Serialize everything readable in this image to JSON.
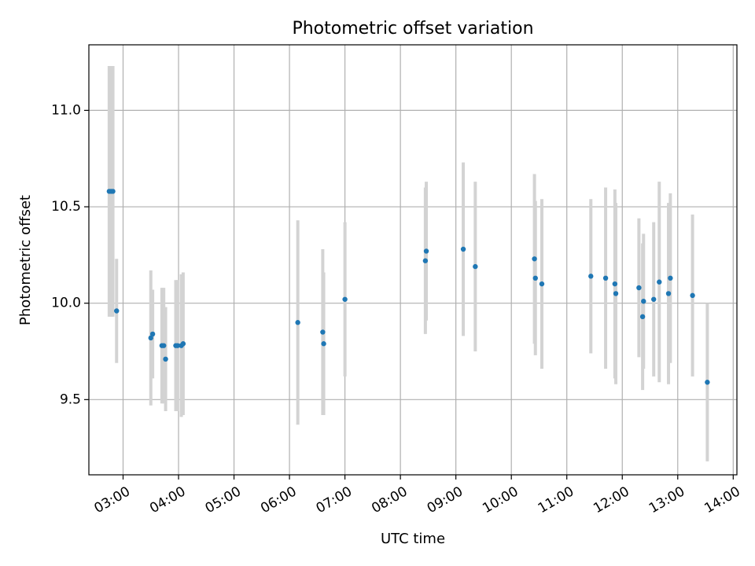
{
  "chart_data": {
    "type": "scatter",
    "title": "Photometric offset variation",
    "xlabel": "UTC time",
    "ylabel": "Photometric offset",
    "grid": true,
    "x_ticks": [
      "03:00",
      "04:00",
      "05:00",
      "06:00",
      "07:00",
      "08:00",
      "09:00",
      "10:00",
      "11:00",
      "12:00",
      "13:00",
      "14:00"
    ],
    "y_ticks": [
      "9.5",
      "10.0",
      "10.5",
      "11.0"
    ],
    "xlim": [
      "02:23",
      "14:04"
    ],
    "ylim": [
      9.11,
      11.34
    ],
    "colors": {
      "point": "#1f77b4",
      "errorbar": "#d3d3d3"
    },
    "series": [
      {
        "points": [
          {
            "x": "02:45",
            "y": 10.58,
            "err": 0.65
          },
          {
            "x": "02:47",
            "y": 10.58,
            "err": 0.65
          },
          {
            "x": "02:49",
            "y": 10.58,
            "err": 0.65
          },
          {
            "x": "02:53",
            "y": 9.96,
            "err": 0.27
          },
          {
            "x": "03:30",
            "y": 9.82,
            "err": 0.35
          },
          {
            "x": "03:32",
            "y": 9.84,
            "err": 0.23
          },
          {
            "x": "03:42",
            "y": 9.78,
            "err": 0.3
          },
          {
            "x": "03:44",
            "y": 9.78,
            "err": 0.3
          },
          {
            "x": "03:46",
            "y": 9.71,
            "err": 0.27
          },
          {
            "x": "03:57",
            "y": 9.78,
            "err": 0.34
          },
          {
            "x": "03:59",
            "y": 9.78,
            "err": 0.34
          },
          {
            "x": "04:03",
            "y": 9.78,
            "err": 0.37
          },
          {
            "x": "04:05",
            "y": 9.79,
            "err": 0.37
          },
          {
            "x": "06:09",
            "y": 9.9,
            "err": 0.53
          },
          {
            "x": "06:36",
            "y": 9.85,
            "err": 0.43
          },
          {
            "x": "06:37",
            "y": 9.79,
            "err": 0.37
          },
          {
            "x": "07:00",
            "y": 10.02,
            "err": 0.4
          },
          {
            "x": "08:27",
            "y": 10.22,
            "err": 0.38
          },
          {
            "x": "08:28",
            "y": 10.27,
            "err": 0.36
          },
          {
            "x": "09:08",
            "y": 10.28,
            "err": 0.45
          },
          {
            "x": "09:21",
            "y": 10.19,
            "err": 0.44
          },
          {
            "x": "10:25",
            "y": 10.23,
            "err": 0.44
          },
          {
            "x": "10:26",
            "y": 10.13,
            "err": 0.4
          },
          {
            "x": "10:33",
            "y": 10.1,
            "err": 0.44
          },
          {
            "x": "11:26",
            "y": 10.14,
            "err": 0.4
          },
          {
            "x": "11:42",
            "y": 10.13,
            "err": 0.47
          },
          {
            "x": "11:52",
            "y": 10.1,
            "err": 0.49
          },
          {
            "x": "11:53",
            "y": 10.05,
            "err": 0.47
          },
          {
            "x": "12:18",
            "y": 10.08,
            "err": 0.36
          },
          {
            "x": "12:22",
            "y": 9.93,
            "err": 0.38
          },
          {
            "x": "12:23",
            "y": 10.01,
            "err": 0.35
          },
          {
            "x": "12:34",
            "y": 10.02,
            "err": 0.4
          },
          {
            "x": "12:40",
            "y": 10.11,
            "err": 0.52
          },
          {
            "x": "12:50",
            "y": 10.05,
            "err": 0.47
          },
          {
            "x": "12:52",
            "y": 10.13,
            "err": 0.44
          },
          {
            "x": "13:16",
            "y": 10.04,
            "err": 0.42
          },
          {
            "x": "13:32",
            "y": 9.59,
            "err": 0.41
          }
        ]
      }
    ]
  }
}
